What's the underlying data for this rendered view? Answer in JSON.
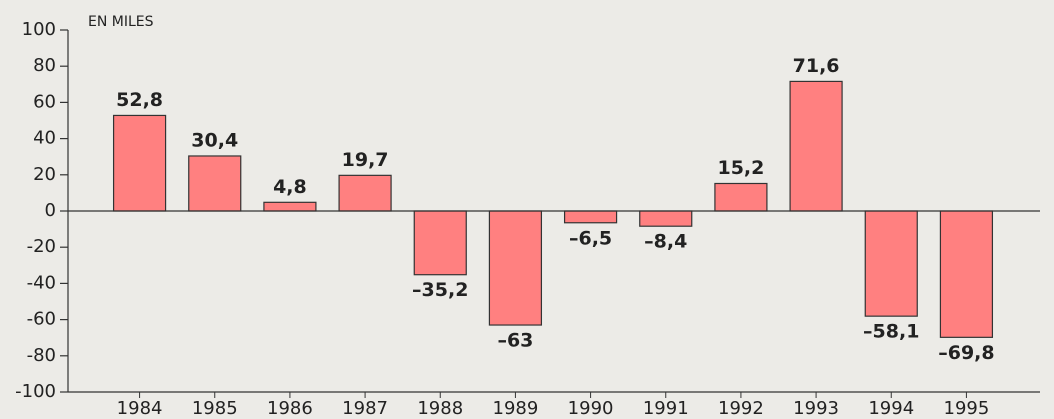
{
  "chart_data": {
    "type": "bar",
    "annotation": "EN MILES",
    "categories": [
      "1984",
      "1985",
      "1986",
      "1987",
      "1988",
      "1989",
      "1990",
      "1991",
      "1992",
      "1993",
      "1994",
      "1995"
    ],
    "values": [
      52.8,
      30.4,
      4.8,
      19.7,
      -35.2,
      -63,
      -6.5,
      -8.4,
      15.2,
      71.6,
      -58.1,
      -69.8
    ],
    "value_labels": [
      "52,8",
      "30,4",
      "4,8",
      "19,7",
      "–35,2",
      "–63",
      "–6,5",
      "–8,4",
      "15,2",
      "71,6",
      "–58,1",
      "–69,8"
    ],
    "color": "#ff8080",
    "ylim": [
      -100,
      100
    ],
    "yticks": [
      -100,
      -80,
      -60,
      -40,
      -20,
      0,
      20,
      40,
      60,
      80,
      100
    ]
  }
}
